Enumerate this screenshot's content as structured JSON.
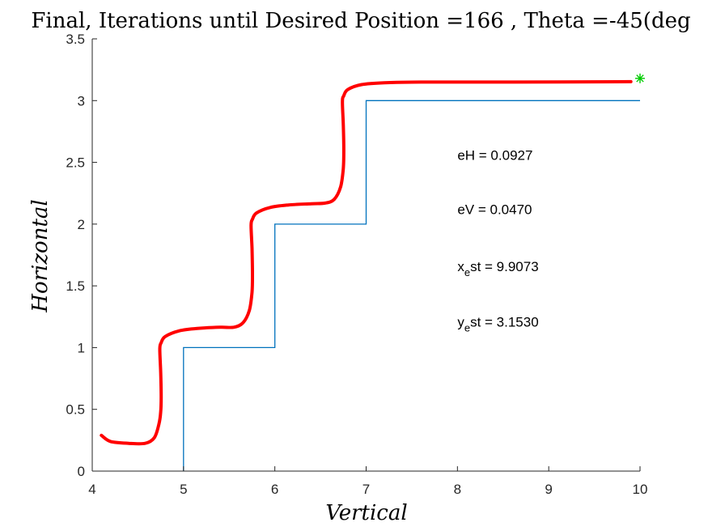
{
  "chart_data": {
    "type": "line",
    "title": "Final, Iterations until Desired Position =166 , Theta =-45(deg",
    "xlabel": "Vertical",
    "ylabel": "Horizontal",
    "xlim": [
      4,
      10
    ],
    "ylim": [
      0,
      3.5
    ],
    "xticks": [
      "4",
      "5",
      "6",
      "7",
      "8",
      "9",
      "10"
    ],
    "yticks": [
      "0",
      "0.5",
      "1",
      "1.5",
      "2",
      "2.5",
      "3",
      "3.5"
    ],
    "grid": false,
    "series": [
      {
        "color": "#0072BD",
        "style": "step",
        "x": [
          5,
          5,
          6,
          6,
          7,
          7,
          10
        ],
        "y": [
          0,
          1,
          1,
          2,
          2,
          3,
          3
        ]
      },
      {
        "color": "#FF0000",
        "style": "smooth-thick",
        "x": [
          4.1,
          4.2,
          4.4,
          4.58,
          4.68,
          4.73,
          4.75,
          4.755,
          4.75,
          4.74,
          4.755,
          4.8,
          4.95,
          5.15,
          5.4,
          5.55,
          5.65,
          5.72,
          5.75,
          5.755,
          5.75,
          5.74,
          5.755,
          5.8,
          5.95,
          6.15,
          6.4,
          6.55,
          6.65,
          6.72,
          6.75,
          6.755,
          6.75,
          6.74,
          6.755,
          6.8,
          6.95,
          7.2,
          7.6,
          8.5,
          9.9
        ],
        "y": [
          0.29,
          0.24,
          0.225,
          0.225,
          0.27,
          0.38,
          0.48,
          0.6,
          0.8,
          0.99,
          1.04,
          1.09,
          1.135,
          1.155,
          1.165,
          1.165,
          1.2,
          1.3,
          1.45,
          1.6,
          1.8,
          1.99,
          2.04,
          2.09,
          2.135,
          2.155,
          2.165,
          2.17,
          2.2,
          2.3,
          2.45,
          2.6,
          2.8,
          2.99,
          3.04,
          3.09,
          3.13,
          3.145,
          3.15,
          3.15,
          3.153
        ]
      }
    ],
    "target_marker": {
      "x": 10,
      "y": 3.18,
      "color": "#00CC00",
      "symbol": "asterisk"
    },
    "annotations": [
      {
        "text": "eH = 0.0927",
        "x": 8,
        "y": 2.52
      },
      {
        "text": "eV = 0.0470",
        "x": 8,
        "y": 2.08
      },
      {
        "main": "x",
        "sub": "e",
        "rest": "st = 9.9073",
        "x": 8,
        "y": 1.62
      },
      {
        "main": "y",
        "sub": "e",
        "rest": "st = 3.1530",
        "x": 8,
        "y": 1.17
      }
    ]
  }
}
